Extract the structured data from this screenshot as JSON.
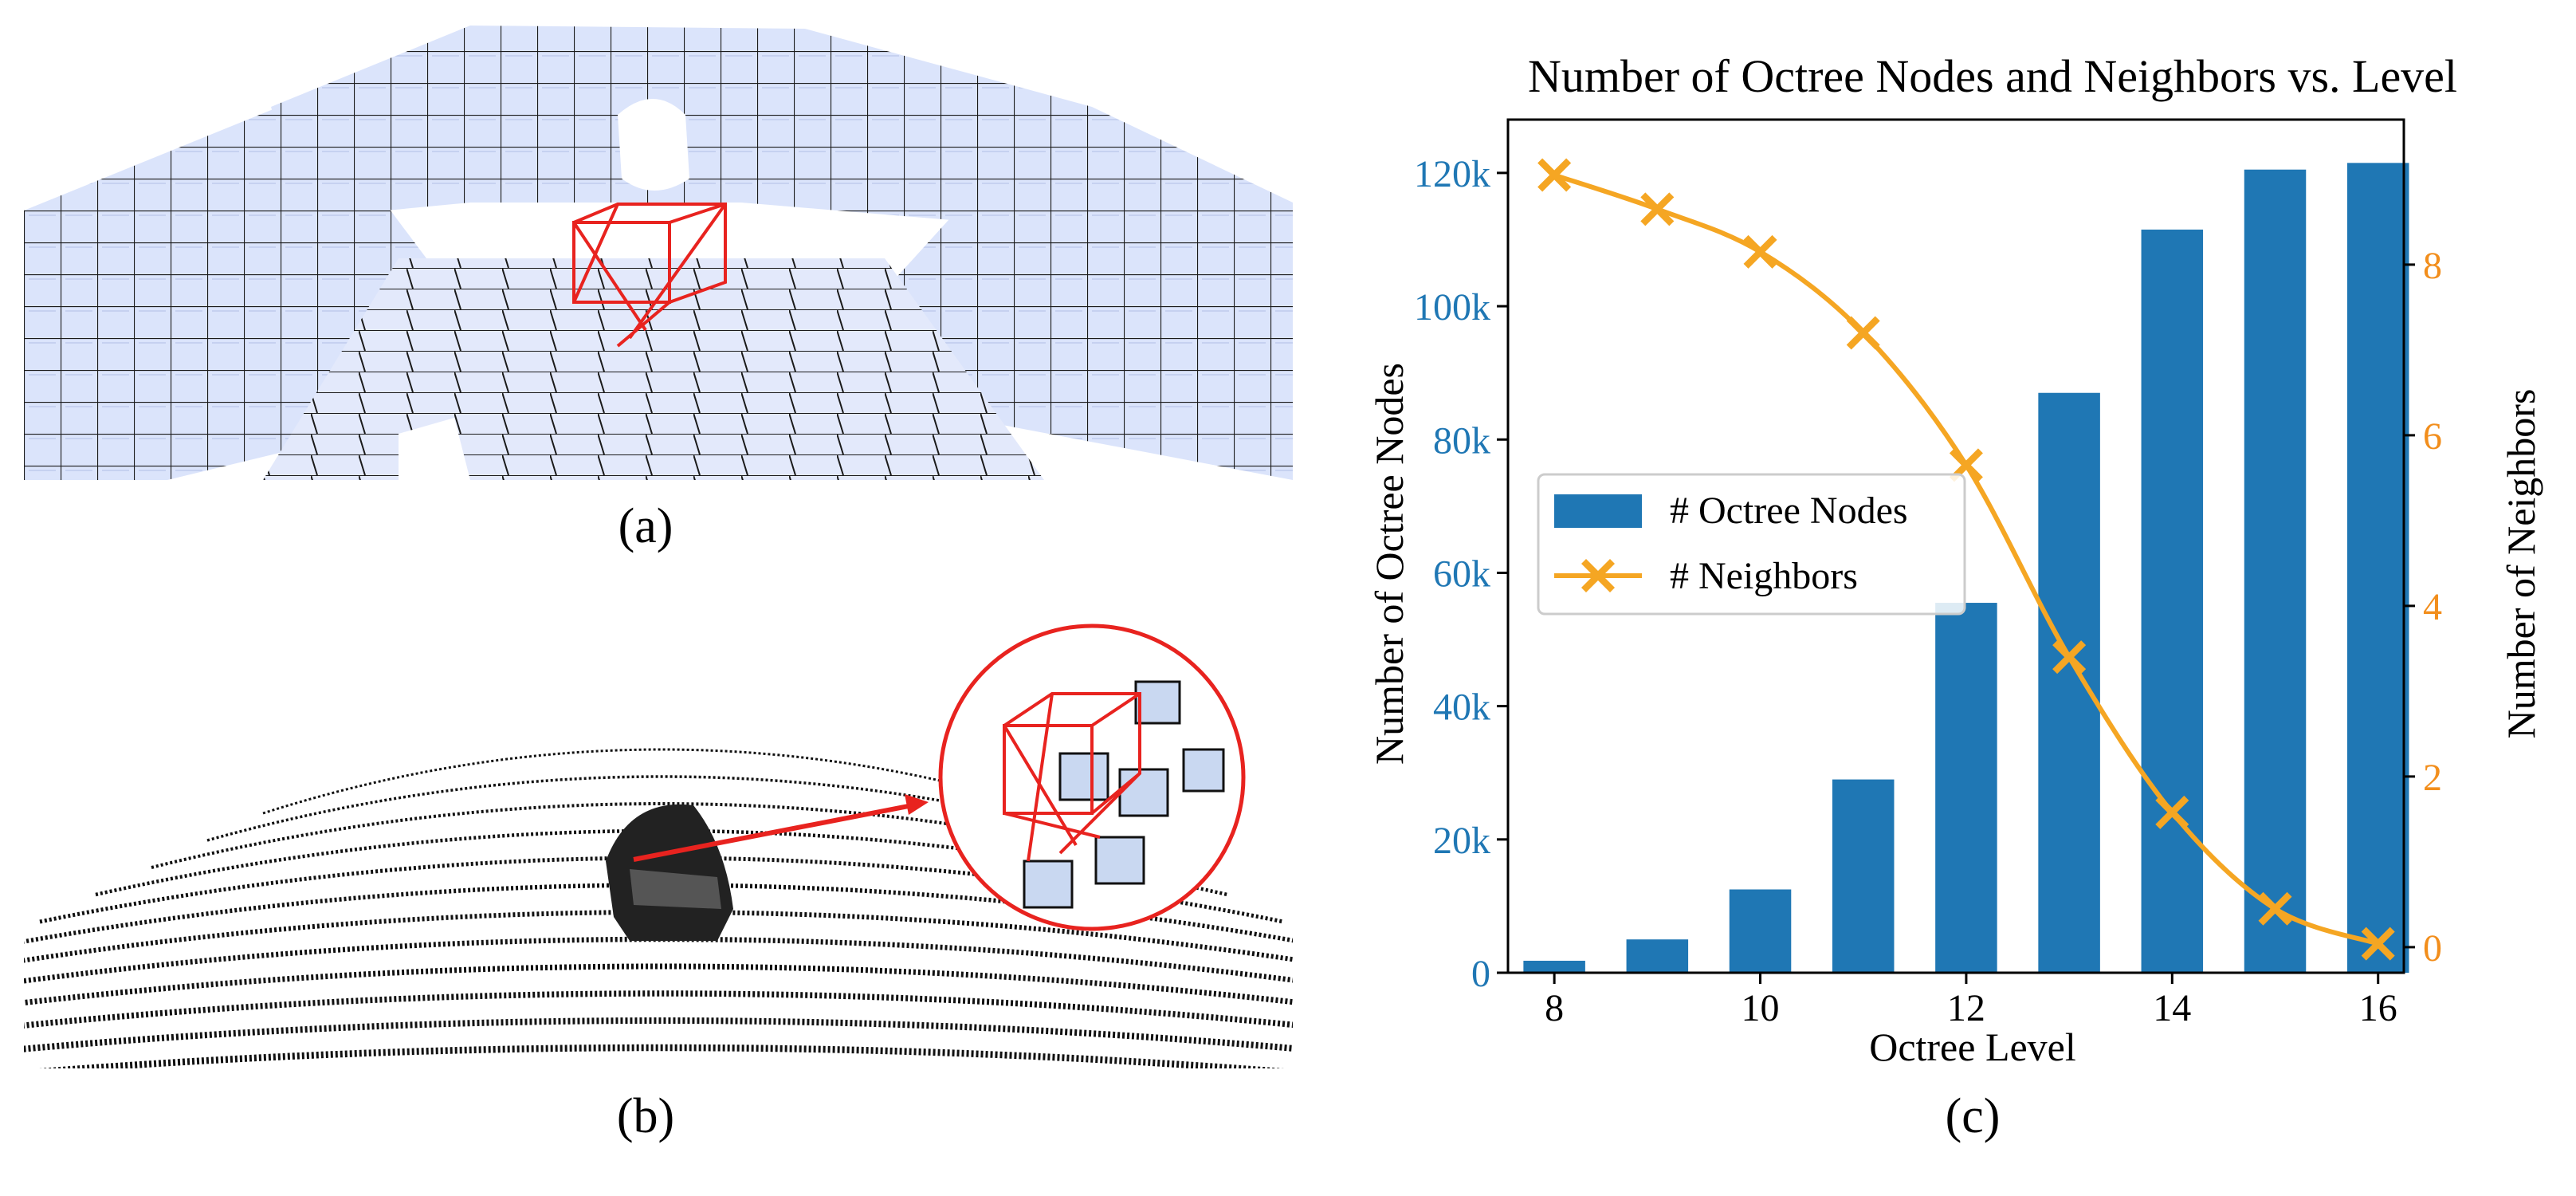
{
  "captions": {
    "a": "(a)",
    "b": "(b)",
    "c": "(c)"
  },
  "images": {
    "a": {
      "description_icon": "octree-voxel-scene",
      "fill": "#dbe4fb",
      "edge": "#111111",
      "highlight": "#e8231f"
    },
    "b": {
      "description_icon": "lidar-point-cloud",
      "highlight": "#e8231f"
    }
  },
  "chart_data": {
    "type": "bar",
    "title": "Number of Octree Nodes and Neighbors vs. Level",
    "xlabel": "Octree Level",
    "ylabel": "Number of Octree Nodes",
    "y2label": "Number of Neighbors",
    "x": [
      8,
      9,
      10,
      11,
      12,
      13,
      14,
      15,
      16
    ],
    "x_ticks": [
      8,
      10,
      12,
      14,
      16
    ],
    "ylim": [
      0,
      128000
    ],
    "y_ticks": [
      0,
      20000,
      40000,
      60000,
      80000,
      100000,
      120000
    ],
    "y_tick_labels": [
      "0",
      "20k",
      "40k",
      "60k",
      "80k",
      "100k",
      "120k"
    ],
    "y2lim": [
      -0.3,
      9.7
    ],
    "y2_ticks": [
      0,
      2,
      4,
      6,
      8
    ],
    "series": [
      {
        "name": "# Octree Nodes",
        "kind": "bar",
        "axis": "left",
        "color": "#1f77b4",
        "values": [
          1800,
          5000,
          12500,
          29000,
          55500,
          87000,
          111500,
          120500,
          121500
        ]
      },
      {
        "name": "# Neighbors",
        "kind": "line",
        "axis": "right",
        "color": "#f5a623",
        "marker": "x",
        "values": [
          9.05,
          8.65,
          8.15,
          7.2,
          5.65,
          3.4,
          1.58,
          0.45,
          0.04
        ]
      }
    ],
    "legend": "center-left",
    "grid": false,
    "left_axis_color": "#1f77b4",
    "right_axis_color": "#f28e1c"
  }
}
